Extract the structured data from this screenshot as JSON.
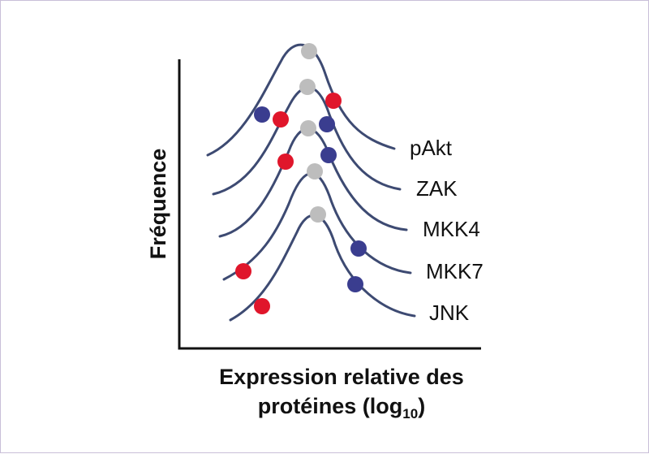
{
  "y_axis_label": "Fréquence",
  "x_axis_label_line1": "Expression relative des",
  "x_axis_label_line2_prefix": "protéines (log",
  "x_axis_label_subscript": "10",
  "x_axis_label_suffix": ")",
  "series": [
    {
      "label": "pAkt"
    },
    {
      "label": "ZAK"
    },
    {
      "label": "MKK4"
    },
    {
      "label": "MKK7"
    },
    {
      "label": "JNK"
    }
  ],
  "colors": {
    "curve": "#3d4a72",
    "dot_red": "#e0162b",
    "dot_blue": "#3a3d8f",
    "dot_grey": "#bdbdbd"
  }
}
